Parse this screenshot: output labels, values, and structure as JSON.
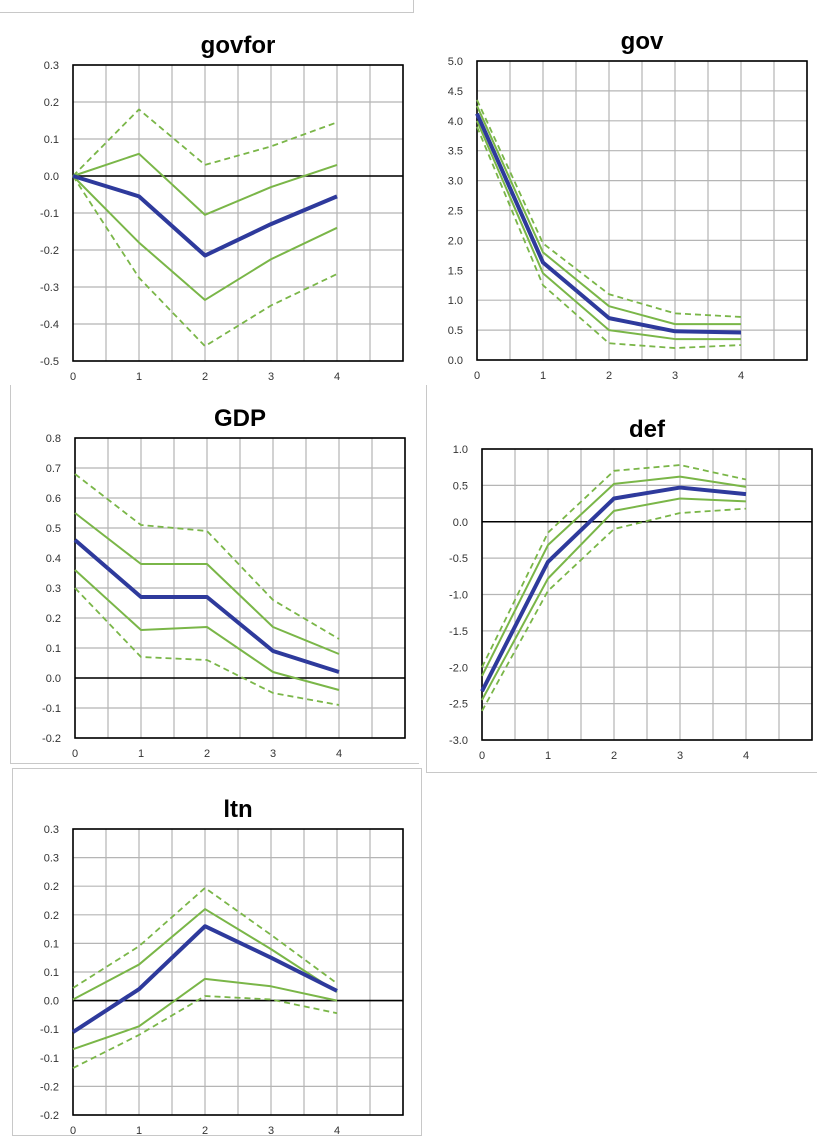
{
  "chart_data": [
    {
      "type": "line",
      "title": "govfor",
      "x": [
        0,
        1,
        2,
        3,
        4
      ],
      "ylim": [
        -0.5,
        0.3
      ],
      "yticks": [
        0.3,
        0.2,
        0.1,
        0.0,
        -0.1,
        -0.2,
        -0.3,
        -0.4,
        -0.5
      ],
      "ytick_labels": [
        "0.3",
        "0.2",
        "0.1",
        "0.0",
        "-0.1",
        "-0.2",
        "-0.3",
        "-0.4",
        "-0.5"
      ],
      "grid": true,
      "series": [
        {
          "style": "outer-band",
          "color": "#7ab648",
          "values": [
            0.0,
            0.18,
            0.03,
            0.08,
            0.145
          ]
        },
        {
          "style": "inner-band",
          "color": "#7ab648",
          "values": [
            0.0,
            0.06,
            -0.105,
            -0.03,
            0.03
          ]
        },
        {
          "style": "inner-band",
          "color": "#7ab648",
          "values": [
            0.0,
            -0.18,
            -0.335,
            -0.225,
            -0.14
          ]
        },
        {
          "style": "outer-band",
          "color": "#7ab648",
          "values": [
            0.0,
            -0.275,
            -0.46,
            -0.35,
            -0.265
          ]
        },
        {
          "style": "main",
          "color": "#2e3a9c",
          "values": [
            0.0,
            -0.055,
            -0.215,
            -0.13,
            -0.055
          ]
        }
      ]
    },
    {
      "type": "line",
      "title": "gov",
      "x": [
        0,
        1,
        2,
        3,
        4
      ],
      "ylim": [
        0.0,
        5.0
      ],
      "yticks": [
        5.0,
        4.5,
        4.0,
        3.5,
        3.0,
        2.5,
        2.0,
        1.5,
        1.0,
        0.5,
        0.0
      ],
      "ytick_labels": [
        "5.0",
        "4.5",
        "4.0",
        "3.5",
        "3.0",
        "2.5",
        "2.0",
        "1.5",
        "1.0",
        "0.5",
        "0.0"
      ],
      "grid": true,
      "series": [
        {
          "style": "outer-band",
          "color": "#7ab648",
          "values": [
            4.35,
            1.95,
            1.1,
            0.78,
            0.72
          ]
        },
        {
          "style": "inner-band",
          "color": "#7ab648",
          "values": [
            4.25,
            1.8,
            0.9,
            0.6,
            0.6
          ]
        },
        {
          "style": "inner-band",
          "color": "#7ab648",
          "values": [
            4.0,
            1.45,
            0.5,
            0.35,
            0.35
          ]
        },
        {
          "style": "outer-band",
          "color": "#7ab648",
          "values": [
            3.9,
            1.25,
            0.28,
            0.2,
            0.25
          ]
        },
        {
          "style": "main",
          "color": "#2e3a9c",
          "values": [
            4.12,
            1.63,
            0.7,
            0.48,
            0.46
          ]
        }
      ]
    },
    {
      "type": "line",
      "title": "GDP",
      "x": [
        0,
        1,
        2,
        3,
        4
      ],
      "ylim": [
        -0.2,
        0.8
      ],
      "yticks": [
        0.8,
        0.7,
        0.6,
        0.5,
        0.4,
        0.3,
        0.2,
        0.1,
        0.0,
        -0.1,
        -0.2
      ],
      "ytick_labels": [
        "0.8",
        "0.7",
        "0.6",
        "0.5",
        "0.4",
        "0.3",
        "0.2",
        "0.1",
        "0.0",
        "-0.1",
        "-0.2"
      ],
      "grid": true,
      "series": [
        {
          "style": "outer-band",
          "color": "#7ab648",
          "values": [
            0.68,
            0.51,
            0.49,
            0.26,
            0.13
          ]
        },
        {
          "style": "inner-band",
          "color": "#7ab648",
          "values": [
            0.55,
            0.38,
            0.38,
            0.17,
            0.08
          ]
        },
        {
          "style": "inner-band",
          "color": "#7ab648",
          "values": [
            0.36,
            0.16,
            0.17,
            0.02,
            -0.04
          ]
        },
        {
          "style": "outer-band",
          "color": "#7ab648",
          "values": [
            0.3,
            0.07,
            0.06,
            -0.05,
            -0.09
          ]
        },
        {
          "style": "main",
          "color": "#2e3a9c",
          "values": [
            0.46,
            0.27,
            0.27,
            0.09,
            0.02
          ]
        }
      ]
    },
    {
      "type": "line",
      "title": "def",
      "x": [
        0,
        1,
        2,
        3,
        4
      ],
      "ylim": [
        -3.0,
        1.0
      ],
      "yticks": [
        1.0,
        0.5,
        0.0,
        -0.5,
        -1.0,
        -1.5,
        -2.0,
        -2.5,
        -3.0
      ],
      "ytick_labels": [
        "1.0",
        "0.5",
        "0.0",
        "-0.5",
        "-1.0",
        "-1.5",
        "-2.0",
        "-2.5",
        "-3.0"
      ],
      "grid": true,
      "series": [
        {
          "style": "outer-band",
          "color": "#7ab648",
          "values": [
            -2.0,
            -0.15,
            0.7,
            0.78,
            0.58
          ]
        },
        {
          "style": "inner-band",
          "color": "#7ab648",
          "values": [
            -2.12,
            -0.32,
            0.52,
            0.62,
            0.48
          ]
        },
        {
          "style": "inner-band",
          "color": "#7ab648",
          "values": [
            -2.45,
            -0.78,
            0.15,
            0.32,
            0.28
          ]
        },
        {
          "style": "outer-band",
          "color": "#7ab648",
          "values": [
            -2.6,
            -0.95,
            -0.1,
            0.12,
            0.18
          ]
        },
        {
          "style": "main",
          "color": "#2e3a9c",
          "values": [
            -2.33,
            -0.55,
            0.32,
            0.47,
            0.38
          ]
        }
      ]
    },
    {
      "type": "line",
      "title": "ltn",
      "x": [
        0,
        1,
        2,
        3,
        4
      ],
      "ylim": [
        -0.2,
        0.3
      ],
      "yticks": [
        0.3,
        0.25,
        0.2,
        0.15,
        0.1,
        0.05,
        0.0,
        -0.05,
        -0.1,
        -0.15,
        -0.2
      ],
      "ytick_labels": [
        "0.3",
        "0.3",
        "0.2",
        "0.2",
        "0.1",
        "0.1",
        "0.0",
        "-0.1",
        "-0.1",
        "-0.2",
        "-0.2"
      ],
      "grid": true,
      "series": [
        {
          "style": "outer-band",
          "color": "#7ab648",
          "values": [
            0.022,
            0.095,
            0.197,
            0.115,
            0.03
          ]
        },
        {
          "style": "inner-band",
          "color": "#7ab648",
          "values": [
            0.002,
            0.063,
            0.16,
            0.09,
            0.015
          ]
        },
        {
          "style": "inner-band",
          "color": "#7ab648",
          "values": [
            -0.085,
            -0.045,
            0.038,
            0.025,
            0.0
          ]
        },
        {
          "style": "outer-band",
          "color": "#7ab648",
          "values": [
            -0.118,
            -0.06,
            0.008,
            0.002,
            -0.022
          ]
        },
        {
          "style": "main",
          "color": "#2e3a9c",
          "values": [
            -0.055,
            0.02,
            0.13,
            0.075,
            0.017
          ]
        }
      ]
    }
  ]
}
